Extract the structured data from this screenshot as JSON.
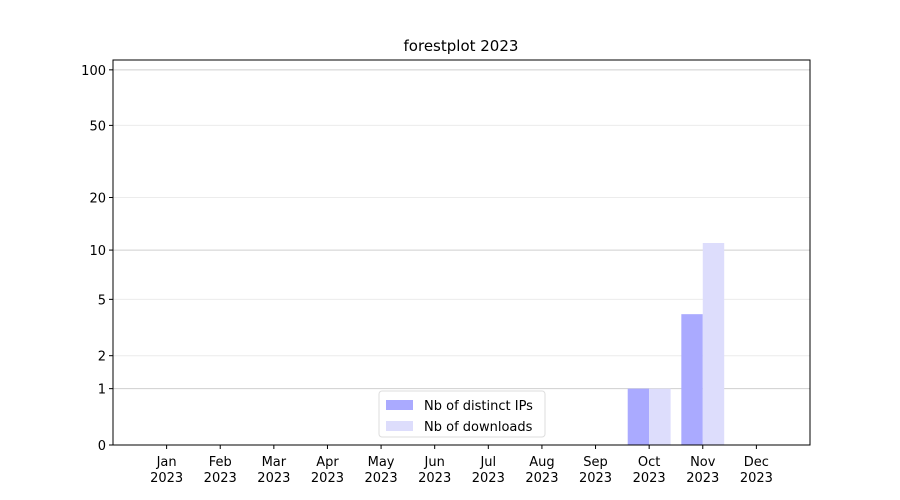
{
  "chart_data": {
    "type": "bar",
    "title": "forestplot 2023",
    "categories": [
      "Jan\n2023",
      "Feb\n2023",
      "Mar\n2023",
      "Apr\n2023",
      "May\n2023",
      "Jun\n2023",
      "Jul\n2023",
      "Aug\n2023",
      "Sep\n2023",
      "Oct\n2023",
      "Nov\n2023",
      "Dec\n2023"
    ],
    "series": [
      {
        "name": "Nb of distinct IPs",
        "color": "#aaaaff",
        "values": [
          0,
          0,
          0,
          0,
          0,
          0,
          0,
          0,
          0,
          1,
          4,
          0
        ]
      },
      {
        "name": "Nb of downloads",
        "color": "#ddddfc",
        "values": [
          0,
          0,
          0,
          0,
          0,
          0,
          0,
          0,
          0,
          1,
          11,
          0
        ]
      }
    ],
    "yscale": "log1p",
    "ylim": [
      0,
      113
    ],
    "yticks": [
      0,
      1,
      2,
      5,
      10,
      20,
      50,
      100
    ],
    "grid": true,
    "legend": "lower center"
  }
}
